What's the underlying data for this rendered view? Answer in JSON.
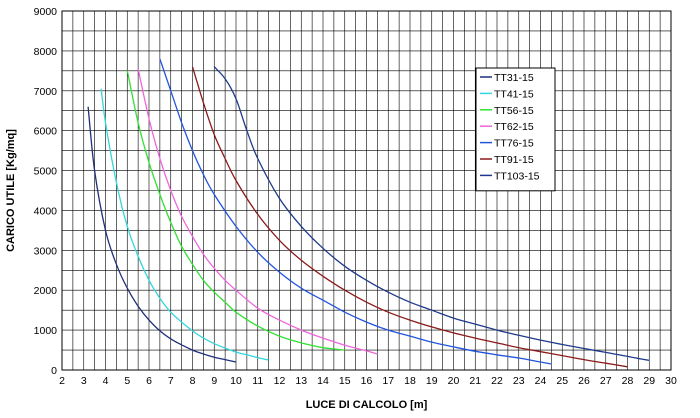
{
  "chart_data": {
    "type": "line",
    "title": "",
    "xlabel": "LUCE DI CALCOLO [m]",
    "ylabel": "CARICO UTILE [Kg/mq]",
    "xlim": [
      2,
      30
    ],
    "ylim": [
      0,
      9000
    ],
    "x_ticks": [
      "2",
      "3",
      "4",
      "5",
      "6",
      "7",
      "8",
      "9",
      "10",
      "11",
      "12",
      "13",
      "14",
      "15",
      "16",
      "17",
      "18",
      "19",
      "20",
      "21",
      "22",
      "23",
      "24",
      "25",
      "26",
      "27",
      "28",
      "29",
      "30"
    ],
    "y_ticks": [
      "0",
      "1000",
      "2000",
      "3000",
      "4000",
      "5000",
      "6000",
      "7000",
      "8000",
      "9000"
    ],
    "grid": true,
    "legend_position": "top-right",
    "series": [
      {
        "name": "TT31-15",
        "color": "#1f2f7a",
        "x": [
          3.2,
          3.5,
          4.0,
          4.5,
          5.0,
          5.5,
          6.0,
          6.5,
          7.0,
          7.5,
          8.0,
          8.5,
          9.0,
          9.5,
          10.0
        ],
        "y": [
          6600,
          5000,
          3500,
          2650,
          2050,
          1600,
          1250,
          980,
          780,
          630,
          500,
          400,
          320,
          260,
          200
        ]
      },
      {
        "name": "TT41-15",
        "color": "#33d6dc",
        "x": [
          3.8,
          4.0,
          4.5,
          5.0,
          5.5,
          6.0,
          6.5,
          7.0,
          7.5,
          8.0,
          8.5,
          9.0,
          9.5,
          10.0,
          10.5,
          11.0,
          11.5
        ],
        "y": [
          7050,
          6200,
          4700,
          3600,
          2850,
          2250,
          1800,
          1450,
          1200,
          980,
          800,
          660,
          550,
          450,
          380,
          310,
          250
        ]
      },
      {
        "name": "TT56-15",
        "color": "#33e033",
        "x": [
          5.0,
          5.5,
          6.0,
          6.5,
          7.0,
          7.5,
          8.0,
          8.5,
          9.0,
          9.5,
          10.0,
          11.0,
          12.0,
          13.0,
          14.0,
          14.5,
          15.0
        ],
        "y": [
          7500,
          6200,
          5200,
          4400,
          3700,
          3100,
          2650,
          2250,
          1950,
          1700,
          1450,
          1100,
          850,
          680,
          560,
          530,
          500
        ]
      },
      {
        "name": "TT62-15",
        "color": "#ee66dd",
        "x": [
          5.5,
          6.0,
          6.5,
          7.0,
          7.5,
          8.0,
          8.5,
          9.0,
          9.5,
          10.0,
          11.0,
          12.0,
          13.0,
          14.0,
          15.0,
          16.0,
          16.5
        ],
        "y": [
          7550,
          6300,
          5300,
          4500,
          3850,
          3350,
          2900,
          2550,
          2250,
          2000,
          1550,
          1250,
          1000,
          800,
          620,
          480,
          400
        ]
      },
      {
        "name": "TT76-15",
        "color": "#2255dd",
        "x": [
          6.5,
          7.0,
          7.5,
          8.0,
          8.5,
          9.0,
          10.0,
          11.0,
          12.0,
          13.0,
          14.0,
          15.0,
          16.0,
          17.0,
          18.0,
          19.0,
          20.0,
          21.0,
          22.0,
          23.0,
          24.0,
          24.5
        ],
        "y": [
          7800,
          7000,
          6200,
          5500,
          4900,
          4400,
          3600,
          2950,
          2450,
          2050,
          1750,
          1450,
          1200,
          1000,
          850,
          700,
          580,
          470,
          380,
          300,
          200,
          150
        ]
      },
      {
        "name": "TT91-15",
        "color": "#8b1a1a",
        "x": [
          8.0,
          8.5,
          9.0,
          9.5,
          10.0,
          11.0,
          12.0,
          13.0,
          14.0,
          15.0,
          16.0,
          17.0,
          18.0,
          19.0,
          20.0,
          21.0,
          22.0,
          23.0,
          24.0,
          25.0,
          26.0,
          27.0,
          28.0
        ],
        "y": [
          7600,
          6700,
          5900,
          5300,
          4750,
          3900,
          3250,
          2750,
          2350,
          2000,
          1700,
          1450,
          1250,
          1080,
          930,
          800,
          680,
          560,
          460,
          360,
          260,
          170,
          80
        ]
      },
      {
        "name": "TT103-15",
        "color": "#1f3a8a",
        "x": [
          9.0,
          9.5,
          10.0,
          10.5,
          11.0,
          12.0,
          13.0,
          14.0,
          15.0,
          16.0,
          17.0,
          18.0,
          19.0,
          20.0,
          21.0,
          22.0,
          23.0,
          24.0,
          25.0,
          26.0,
          27.0,
          28.0,
          29.0
        ],
        "y": [
          7600,
          7300,
          6800,
          6000,
          5300,
          4300,
          3600,
          3050,
          2600,
          2250,
          1950,
          1700,
          1500,
          1300,
          1150,
          1000,
          870,
          750,
          640,
          540,
          440,
          340,
          240
        ]
      }
    ]
  }
}
